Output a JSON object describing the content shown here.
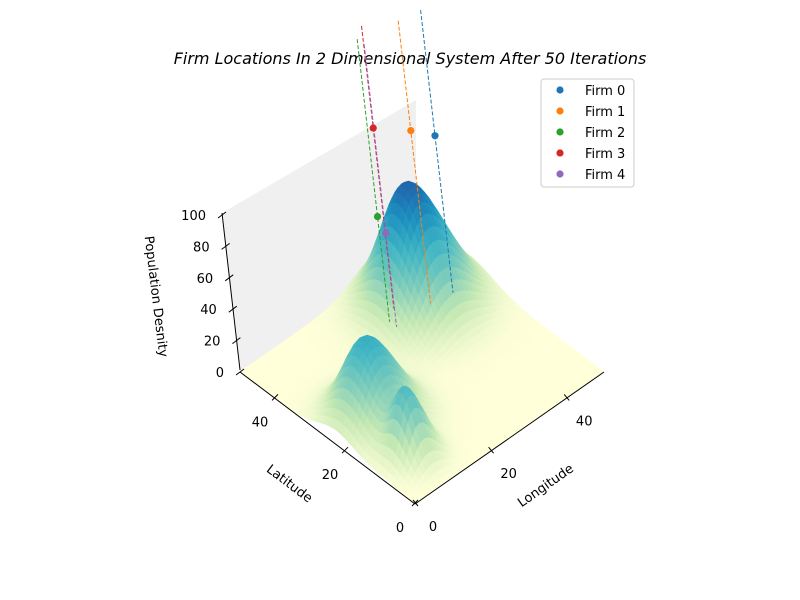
{
  "chart_data": {
    "type": "surface3d-scatter",
    "title": "Firm Locations In 2 Dimensional System After 50 Iterations",
    "xlabel": "Longitude",
    "ylabel": "Latitude",
    "zlabel": "Population Desnity",
    "xlim": [
      0,
      50
    ],
    "ylim": [
      0,
      50
    ],
    "zlim": [
      0,
      100
    ],
    "x_ticks": [
      "0",
      "20",
      "40"
    ],
    "y_ticks": [
      "0",
      "20",
      "40"
    ],
    "z_ticks": [
      "0",
      "20",
      "40",
      "60",
      "80",
      "100"
    ],
    "x_tick_values": [
      0,
      20,
      40
    ],
    "y_tick_values": [
      0,
      20,
      40
    ],
    "z_tick_values": [
      0,
      20,
      40,
      60,
      80,
      100
    ],
    "legend_position": "upper-right",
    "colormap": [
      "#ffffd9",
      "#c7e9b4",
      "#7fcdbb",
      "#41b6c4",
      "#1d91c0",
      "#225ea8"
    ],
    "surface_peaks": [
      {
        "x": 37,
        "y": 38,
        "height": 78,
        "spread": 6.5
      },
      {
        "x": 10,
        "y": 22,
        "height": 52,
        "spread": 5.5
      },
      {
        "x": 8,
        "y": 9,
        "height": 42,
        "spread": 3.2
      }
    ],
    "series": [
      {
        "name": "Firm 0",
        "color": "#1f77b4",
        "x": 45,
        "y": 38,
        "z": 95
      },
      {
        "name": "Firm 1",
        "color": "#ff7f0e",
        "x": 40,
        "y": 39,
        "z": 105
      },
      {
        "name": "Firm 2",
        "color": "#2ca02c",
        "x": 31,
        "y": 41,
        "z": 62
      },
      {
        "name": "Firm 3",
        "color": "#d62728",
        "x": 34,
        "y": 43,
        "z": 110
      },
      {
        "name": "Firm 4",
        "color": "#9467bd",
        "x": 31,
        "y": 39,
        "z": 55
      }
    ]
  }
}
